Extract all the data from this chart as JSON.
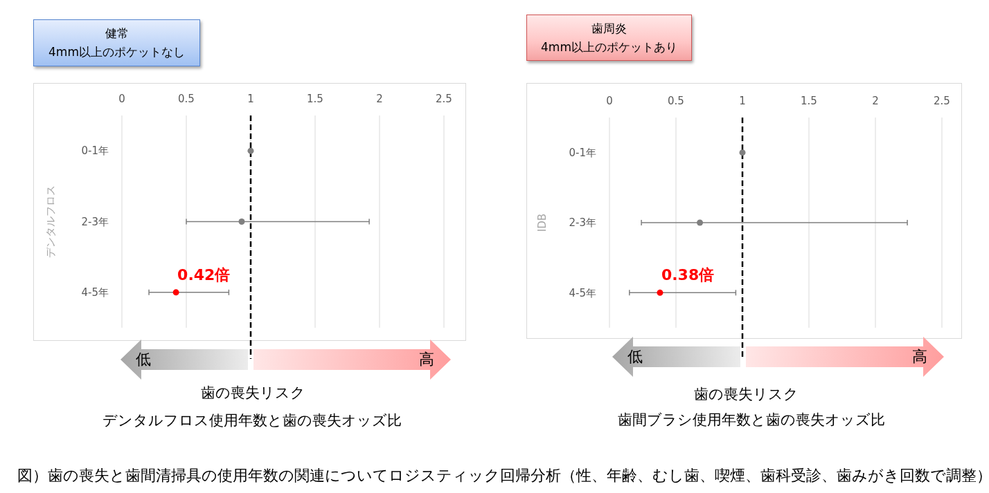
{
  "chart_data": [
    {
      "type": "scatter",
      "title": "健常\n4mm以上のポケットなし",
      "xlabel": "歯の喪失リスク",
      "ylabel": "デンタルフロス",
      "orientation": "horizontal",
      "categories": [
        "0-1年",
        "2-3年",
        "4-5年"
      ],
      "values": [
        1.0,
        0.93,
        0.42
      ],
      "errors": [
        null,
        [
          0.5,
          1.92
        ],
        [
          0.21,
          0.83
        ]
      ],
      "colors": [
        "#808080",
        "#808080",
        "#ff0000"
      ],
      "value_labels": [
        null,
        null,
        "0.42倍"
      ],
      "marker": "circle",
      "xlim": [
        0,
        2.5
      ],
      "xticks": [
        0,
        0.5,
        1,
        1.5,
        2,
        2.5
      ],
      "grid": "x",
      "ref_lines": [
        {
          "axis": "x",
          "value": 1,
          "color": "#000000",
          "line_style": "dashed"
        }
      ],
      "annotations": [
        "低",
        "高",
        "デンタルフロス使用年数と歯の喪失オッズ比"
      ]
    },
    {
      "type": "scatter",
      "title": "歯周炎\n4mm以上のポケットあり",
      "xlabel": "歯の喪失リスク",
      "ylabel": "IDB",
      "orientation": "horizontal",
      "categories": [
        "0-1年",
        "2-3年",
        "4-5年"
      ],
      "values": [
        1.0,
        0.68,
        0.38
      ],
      "errors": [
        null,
        [
          0.24,
          2.24
        ],
        [
          0.15,
          0.95
        ]
      ],
      "colors": [
        "#808080",
        "#808080",
        "#ff0000"
      ],
      "value_labels": [
        null,
        null,
        "0.38倍"
      ],
      "marker": "circle",
      "xlim": [
        0,
        2.5
      ],
      "xticks": [
        0,
        0.5,
        1,
        1.5,
        2,
        2.5
      ],
      "grid": "x",
      "ref_lines": [
        {
          "axis": "x",
          "value": 1,
          "color": "#000000",
          "line_style": "dashed"
        }
      ],
      "annotations": [
        "低",
        "高",
        "歯間ブラシ使用年数と歯の喪失オッズ比",
        "図）歯の喪失と歯間清掃具の使用年数の関連についてロジスティック回帰分析（性、年齢、むし歯、喫煙、歯科受診、歯みがき回数で調整）"
      ]
    }
  ]
}
